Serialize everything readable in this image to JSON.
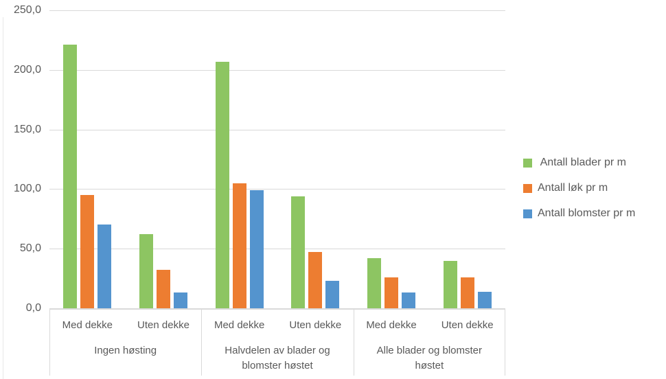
{
  "chart_data": {
    "type": "bar",
    "title": "",
    "xlabel": "",
    "ylabel": "",
    "ylim": [
      0,
      250
    ],
    "grid": true,
    "legend_position": "right",
    "yticks": [
      "0,0",
      "50,0",
      "100,0",
      "150,0",
      "200,0",
      "250,0"
    ],
    "ytick_values": [
      0,
      50,
      100,
      150,
      200,
      250
    ],
    "groups": [
      {
        "label": "Ingen høsting",
        "subcategories": [
          "Med dekke",
          "Uten dekke"
        ]
      },
      {
        "label": "Halvdelen av blader og blomster høstet",
        "subcategories": [
          "Med dekke",
          "Uten dekke"
        ]
      },
      {
        "label": "Alle blader og blomster høstet",
        "subcategories": [
          "Med dekke",
          "Uten dekke"
        ]
      }
    ],
    "series": [
      {
        "name": " Antall blader pr m",
        "color": "#8DC562",
        "values": [
          221,
          62,
          207,
          94,
          42,
          40
        ]
      },
      {
        "name": "Antall løk pr m",
        "color": "#ED7D31",
        "values": [
          95,
          32,
          105,
          47,
          26,
          26
        ]
      },
      {
        "name": "Antall blomster pr m",
        "color": "#5494CE",
        "values": [
          70,
          13,
          99,
          23,
          13,
          14
        ]
      }
    ],
    "colors": {
      "gridline": "#d9d9d9",
      "axis_text": "#595959",
      "series_green": "#8DC562",
      "series_orange": "#ED7D31",
      "series_blue": "#5494CE"
    }
  }
}
